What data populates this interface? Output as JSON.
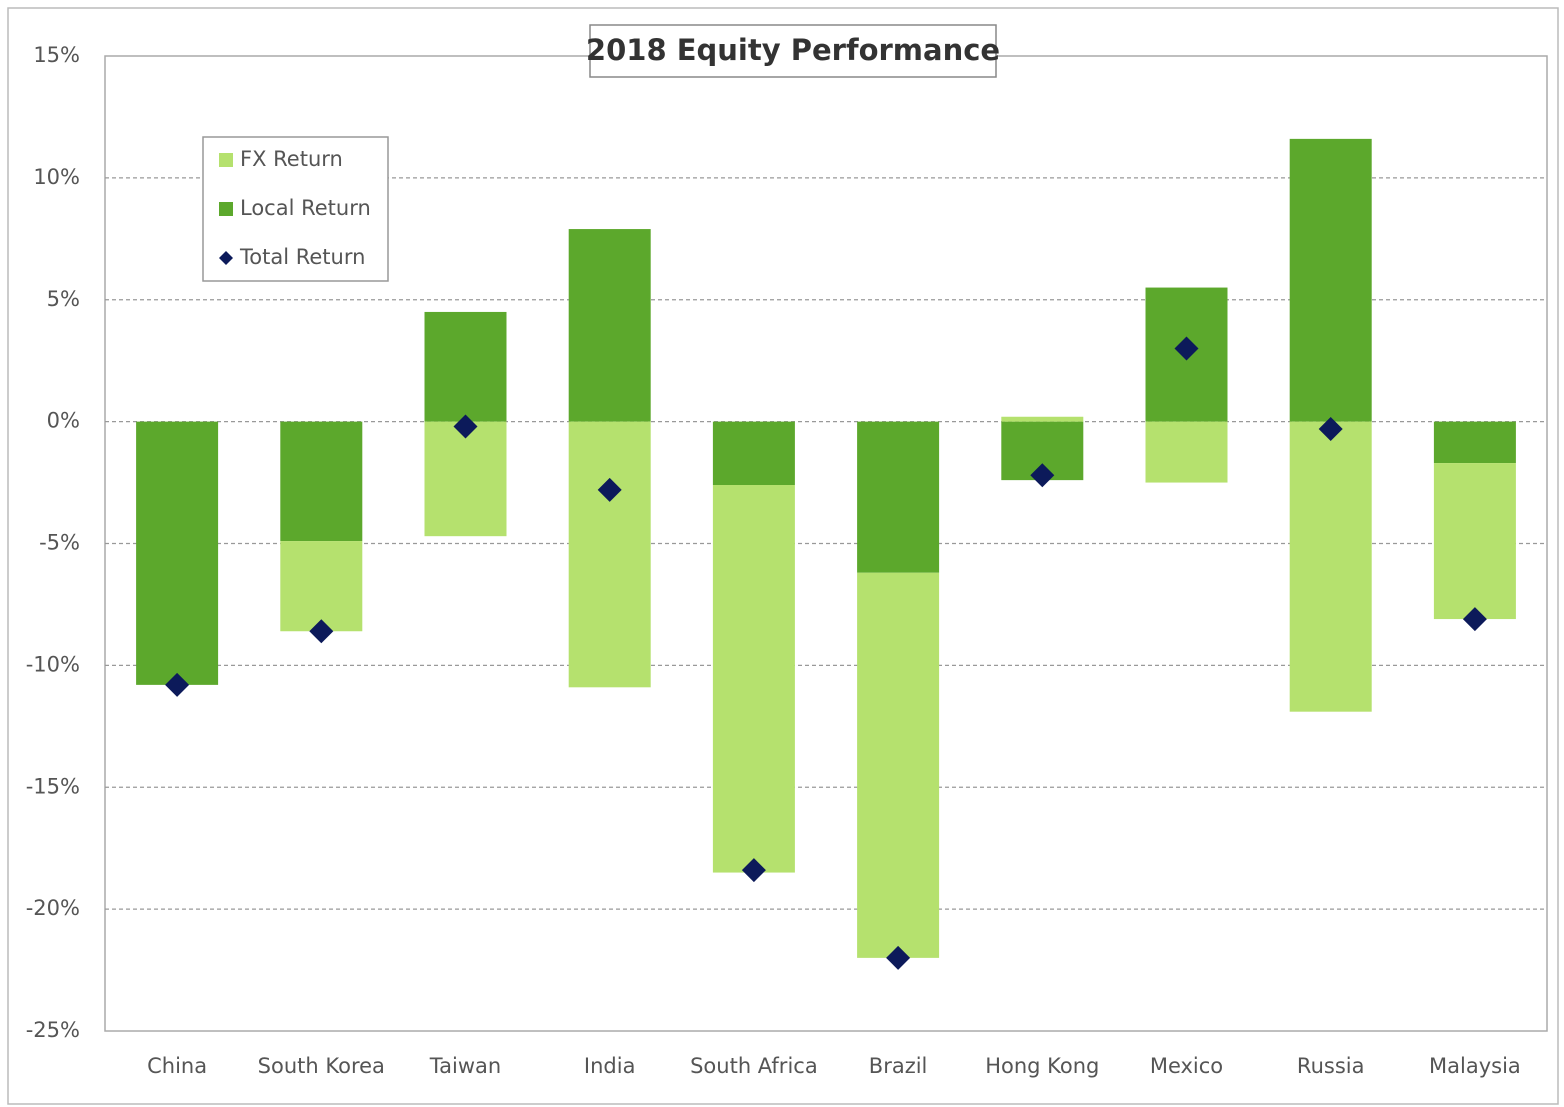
{
  "chart_data": {
    "type": "bar",
    "stacked": true,
    "title": "2018 Equity Performance",
    "categories": [
      "China",
      "South Korea",
      "Taiwan",
      "India",
      "South Africa",
      "Brazil",
      "Hong Kong",
      "Mexico",
      "Russia",
      "Malaysia"
    ],
    "series": [
      {
        "name": "FX Return",
        "type": "bar",
        "color": "#b5e16e",
        "values": [
          0,
          -3.7,
          -4.7,
          -10.9,
          -15.9,
          -15.8,
          0.2,
          -2.5,
          -11.9,
          -6.4
        ]
      },
      {
        "name": "Local Return",
        "type": "bar",
        "color": "#5ca82c",
        "values": [
          -10.8,
          -4.9,
          4.5,
          7.9,
          -2.6,
          -6.2,
          -2.4,
          5.5,
          11.6,
          -1.7
        ]
      },
      {
        "name": "Total Return",
        "type": "scatter",
        "marker": "diamond",
        "color": "#0c1a5a",
        "values": [
          -10.8,
          -8.6,
          -0.2,
          -2.8,
          -18.4,
          -22.0,
          -2.2,
          3.0,
          -0.3,
          -8.1
        ]
      }
    ],
    "ylim": [
      -25,
      15
    ],
    "yticks": [
      {
        "value": -25,
        "label": "-25%"
      },
      {
        "value": -20,
        "label": "-20%"
      },
      {
        "value": -15,
        "label": "-15%"
      },
      {
        "value": -10,
        "label": "-10%"
      },
      {
        "value": -5,
        "label": "-5%"
      },
      {
        "value": 0,
        "label": "0%"
      },
      {
        "value": 5,
        "label": "5%"
      },
      {
        "value": 10,
        "label": "10%"
      },
      {
        "value": 15,
        "label": "15%"
      }
    ],
    "grid": true,
    "legend": "top-left"
  }
}
